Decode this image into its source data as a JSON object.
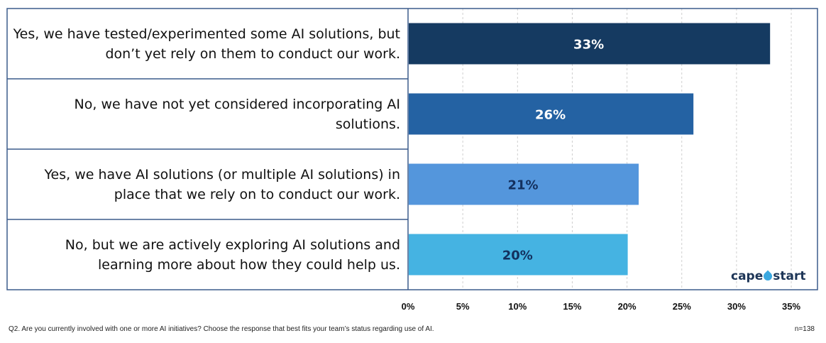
{
  "chart_data": {
    "type": "bar",
    "orientation": "horizontal",
    "categories": [
      "Yes, we have tested/experimented some AI solutions, but don’t yet rely on them to conduct our work.",
      "No, we have not yet considered incorporating AI solutions.",
      "Yes, we have AI solutions (or multiple AI solutions) in place that we rely on to conduct our work.",
      "No, but we are actively exploring AI solutions and learning more about how they could help us."
    ],
    "values": [
      33,
      26,
      21,
      20
    ],
    "data_labels": [
      "33%",
      "26%",
      "21%",
      "20%"
    ],
    "bar_colors": [
      "#153a61",
      "#2462a3",
      "#5496dc",
      "#45b3e2"
    ],
    "data_label_colors": [
      "#ffffff",
      "#ffffff",
      "#13305e",
      "#13305e"
    ],
    "xlim": [
      0,
      35
    ],
    "x_ticks": [
      "0%",
      "5%",
      "10%",
      "15%",
      "20%",
      "25%",
      "30%",
      "35%"
    ],
    "grid": "vertical dashed",
    "title": "",
    "xlabel": "",
    "ylabel": ""
  },
  "footer": {
    "question": "Q2. Are you currently involved with one or more AI initiatives? Choose the response that best fits your team’s status regarding use of AI.",
    "sample": "n=138"
  },
  "logo": {
    "left": "cape",
    "right": "start"
  },
  "colors": {
    "frame": "#3b5b8c",
    "grid": "#cfcfcf"
  }
}
